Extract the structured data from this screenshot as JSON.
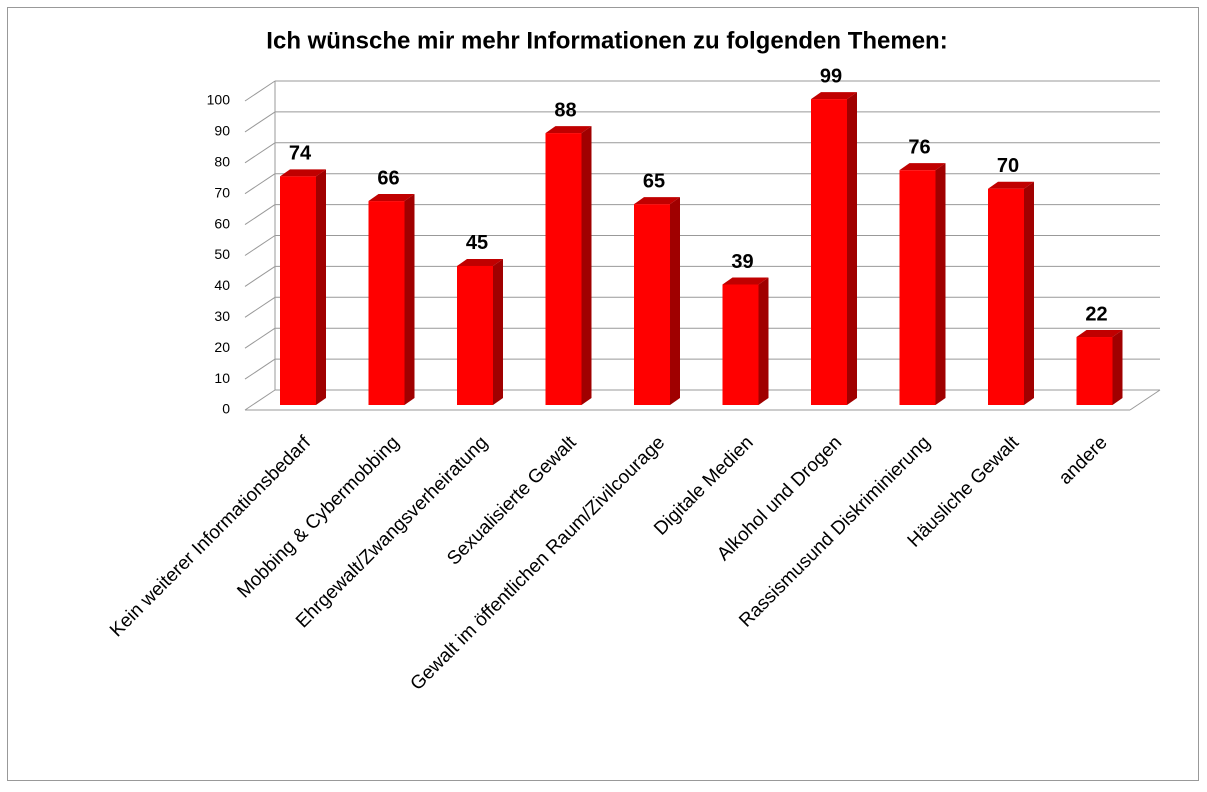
{
  "chart_data": {
    "type": "bar",
    "title": "Ich wünsche mir mehr Informationen zu folgenden Themen:",
    "categories": [
      "Kein weiterer Informationsbedarf",
      "Mobbing & Cybermobbing",
      "Ehrgewalt/Zwangsverheiratung",
      "Sexualisierte Gewalt",
      "Gewalt im öffentlichen Raum/Zivilcourage",
      "Digitale Medien",
      "Alkohol und Drogen",
      "Rassismusund Diskriminierung",
      "Häusliche Gewalt",
      "andere"
    ],
    "values": [
      74,
      66,
      45,
      88,
      65,
      39,
      99,
      76,
      70,
      22
    ],
    "color": "#ff0000",
    "ylim": [
      0,
      100
    ],
    "yticks": [
      0,
      10,
      20,
      30,
      40,
      50,
      60,
      70,
      80,
      90,
      100
    ],
    "grid": true
  }
}
